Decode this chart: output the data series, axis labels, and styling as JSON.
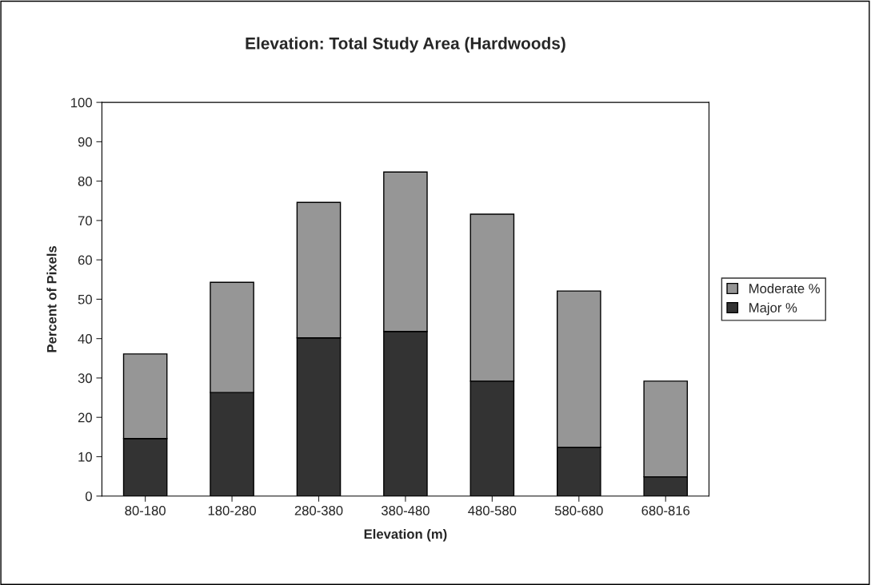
{
  "chart_data": {
    "type": "bar",
    "title": "Elevation: Total Study Area (Hardwoods)",
    "xlabel": "Elevation (m)",
    "ylabel": "Percent of Pixels",
    "categories": [
      "80-180",
      "180-280",
      "280-380",
      "380-480",
      "480-580",
      "580-680",
      "680-816"
    ],
    "series": [
      {
        "name": "Major %",
        "color": "#333333",
        "values": [
          14.6,
          26.3,
          40.2,
          41.8,
          29.2,
          12.4,
          4.9
        ]
      },
      {
        "name": "Moderate %",
        "color": "#969696",
        "values": [
          21.5,
          28.0,
          34.4,
          40.5,
          42.4,
          39.7,
          24.3
        ]
      }
    ],
    "stacked": true,
    "ylim": [
      0,
      100
    ],
    "yticks": [
      0,
      10,
      20,
      30,
      40,
      50,
      60,
      70,
      80,
      90,
      100
    ],
    "grid": false,
    "legend": "right"
  }
}
